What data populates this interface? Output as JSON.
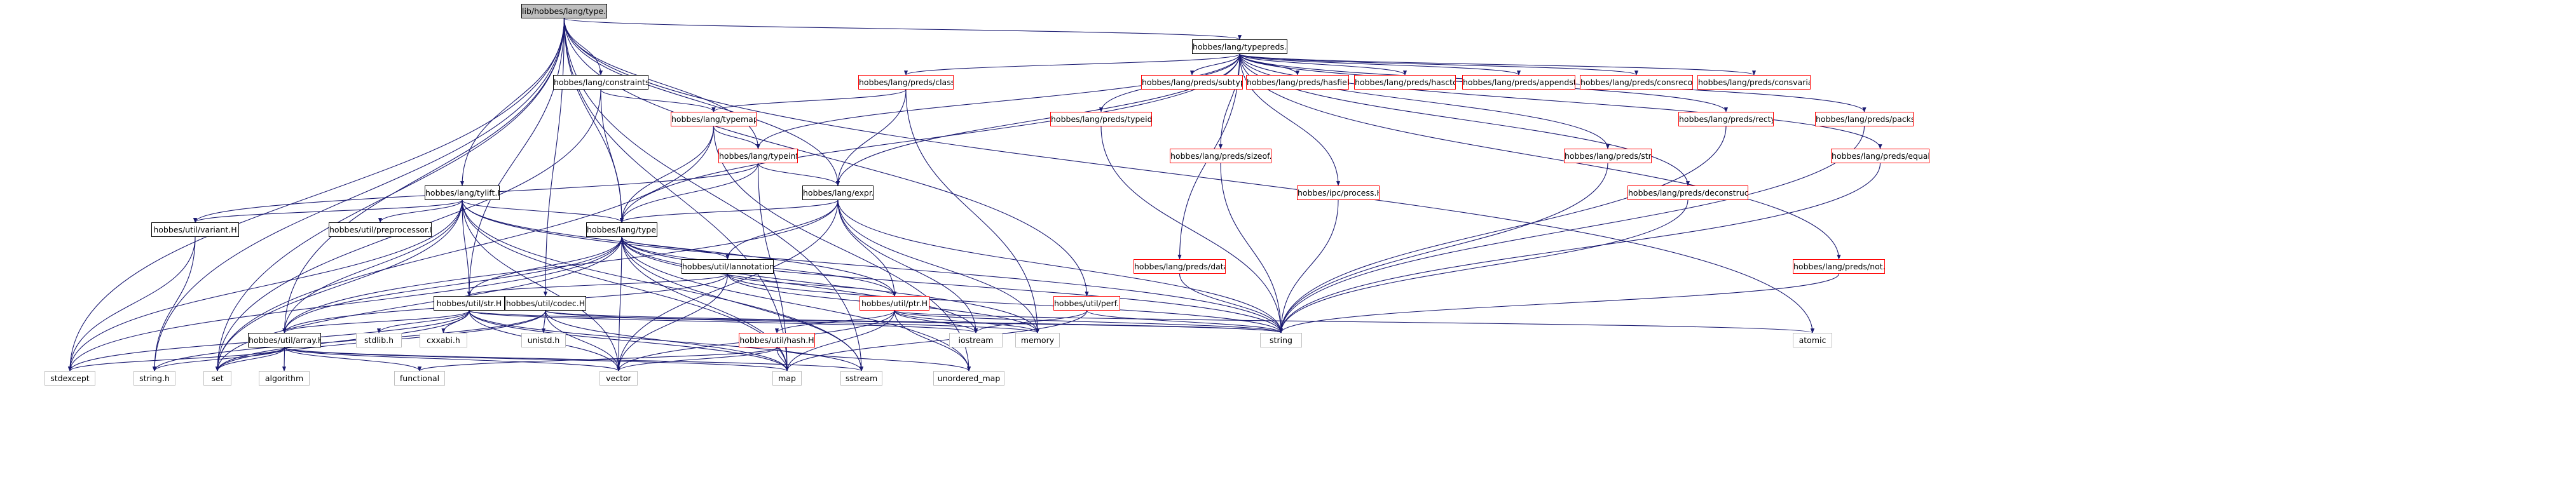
{
  "colors": {
    "edge": "#191970",
    "missing_border": "#ff0000",
    "plain_border": "#bfbfbf",
    "root_fill": "#bfbfbf"
  },
  "nodes": [
    {
      "id": "root",
      "label": "lib/hobbes/lang/type.C",
      "kind": "root"
    },
    {
      "id": "typepreds",
      "label": "hobbes/lang/typepreds.H",
      "kind": "local"
    },
    {
      "id": "constraints",
      "label": "hobbes/lang/constraints.H",
      "kind": "local"
    },
    {
      "id": "class",
      "label": "hobbes/lang/preds/class.H",
      "kind": "missing"
    },
    {
      "id": "subtype",
      "label": "hobbes/lang/preds/subtype.H",
      "kind": "missing"
    },
    {
      "id": "hasfield",
      "label": "hobbes/lang/preds/hasfield.H",
      "kind": "missing"
    },
    {
      "id": "hasctor",
      "label": "hobbes/lang/preds/hasctor.H",
      "kind": "missing"
    },
    {
      "id": "appendsto",
      "label": "hobbes/lang/preds/appendsto.H",
      "kind": "missing"
    },
    {
      "id": "consrecord",
      "label": "hobbes/lang/preds/consrecord.H",
      "kind": "missing"
    },
    {
      "id": "consvariant",
      "label": "hobbes/lang/preds/consvariant.H",
      "kind": "missing"
    },
    {
      "id": "typemap",
      "label": "hobbes/lang/typemap.H",
      "kind": "missing"
    },
    {
      "id": "typeddep",
      "label": "hobbes/lang/preds/typeid.H",
      "kind": "missing"
    },
    {
      "id": "recty",
      "label": "hobbes/lang/preds/recty.H",
      "kind": "missing"
    },
    {
      "id": "packsto",
      "label": "hobbes/lang/preds/packsto.H",
      "kind": "missing"
    },
    {
      "id": "typeinf",
      "label": "hobbes/lang/typeinf.H",
      "kind": "missing"
    },
    {
      "id": "sizeof",
      "label": "hobbes/lang/preds/sizeof.H",
      "kind": "missing"
    },
    {
      "id": "predstr",
      "label": "hobbes/lang/preds/str.H",
      "kind": "missing"
    },
    {
      "id": "predsequal",
      "label": "hobbes/lang/preds/equal.H",
      "kind": "missing"
    },
    {
      "id": "tylift",
      "label": "hobbes/lang/tylift.H",
      "kind": "local"
    },
    {
      "id": "expr",
      "label": "hobbes/lang/expr.H",
      "kind": "local"
    },
    {
      "id": "process",
      "label": "hobbes/ipc/process.H",
      "kind": "missing"
    },
    {
      "id": "deconstruct",
      "label": "hobbes/lang/preds/deconstruct.H",
      "kind": "missing"
    },
    {
      "id": "variant",
      "label": "hobbes/util/variant.H",
      "kind": "local"
    },
    {
      "id": "preprocessor",
      "label": "hobbes/util/preprocessor.H",
      "kind": "local"
    },
    {
      "id": "typeH",
      "label": "hobbes/lang/type.H",
      "kind": "local"
    },
    {
      "id": "lannotation",
      "label": "hobbes/util/lannotation.H",
      "kind": "local"
    },
    {
      "id": "predsdata",
      "label": "hobbes/lang/preds/data.H",
      "kind": "missing"
    },
    {
      "id": "predsnot",
      "label": "hobbes/lang/preds/not.H",
      "kind": "missing"
    },
    {
      "id": "utilstr",
      "label": "hobbes/util/str.H",
      "kind": "local"
    },
    {
      "id": "codec",
      "label": "hobbes/util/codec.H",
      "kind": "local"
    },
    {
      "id": "ptr",
      "label": "hobbes/util/ptr.H",
      "kind": "missing"
    },
    {
      "id": "perf",
      "label": "hobbes/util/perf.H",
      "kind": "missing"
    },
    {
      "id": "array",
      "label": "hobbes/util/array.H",
      "kind": "local"
    },
    {
      "id": "hash",
      "label": "hobbes/util/hash.H",
      "kind": "missing"
    },
    {
      "id": "stdlib",
      "label": "stdlib.h",
      "kind": "plain"
    },
    {
      "id": "cxxabi",
      "label": "cxxabi.h",
      "kind": "plain"
    },
    {
      "id": "unistd",
      "label": "unistd.h",
      "kind": "plain"
    },
    {
      "id": "iostream",
      "label": "iostream",
      "kind": "plain"
    },
    {
      "id": "memory",
      "label": "memory",
      "kind": "plain"
    },
    {
      "id": "string",
      "label": "string",
      "kind": "plain"
    },
    {
      "id": "atomic",
      "label": "atomic",
      "kind": "plain"
    },
    {
      "id": "stdexcept",
      "label": "stdexcept",
      "kind": "plain"
    },
    {
      "id": "stringh",
      "label": "string.h",
      "kind": "plain"
    },
    {
      "id": "set",
      "label": "set",
      "kind": "plain"
    },
    {
      "id": "algorithm",
      "label": "algorithm",
      "kind": "plain"
    },
    {
      "id": "functional",
      "label": "functional",
      "kind": "plain"
    },
    {
      "id": "vector",
      "label": "vector",
      "kind": "plain"
    },
    {
      "id": "map",
      "label": "map",
      "kind": "plain"
    },
    {
      "id": "sstream",
      "label": "sstream",
      "kind": "plain"
    },
    {
      "id": "unordered_map",
      "label": "unordered_map",
      "kind": "plain"
    }
  ],
  "edges": [
    [
      "root",
      "typepreds"
    ],
    [
      "root",
      "constraints"
    ],
    [
      "root",
      "tylift"
    ],
    [
      "root",
      "typeH"
    ],
    [
      "root",
      "expr"
    ],
    [
      "root",
      "typeinf"
    ],
    [
      "root",
      "utilstr"
    ],
    [
      "root",
      "codec"
    ],
    [
      "root",
      "array"
    ],
    [
      "root",
      "perf"
    ],
    [
      "root",
      "stdexcept"
    ],
    [
      "root",
      "stringh"
    ],
    [
      "root",
      "set"
    ],
    [
      "root",
      "atomic"
    ],
    [
      "root",
      "sstream"
    ],
    [
      "root",
      "map"
    ],
    [
      "typepreds",
      "class"
    ],
    [
      "typepreds",
      "subtype"
    ],
    [
      "typepreds",
      "hasfield"
    ],
    [
      "typepreds",
      "hasctor"
    ],
    [
      "typepreds",
      "appendsto"
    ],
    [
      "typepreds",
      "consrecord"
    ],
    [
      "typepreds",
      "consvariant"
    ],
    [
      "typepreds",
      "typeddep"
    ],
    [
      "typepreds",
      "recty"
    ],
    [
      "typepreds",
      "packsto"
    ],
    [
      "typepreds",
      "typeinf"
    ],
    [
      "typepreds",
      "sizeof"
    ],
    [
      "typepreds",
      "predstr"
    ],
    [
      "typepreds",
      "predsequal"
    ],
    [
      "typepreds",
      "process"
    ],
    [
      "typepreds",
      "deconstruct"
    ],
    [
      "typepreds",
      "predsdata"
    ],
    [
      "typepreds",
      "predsnot"
    ],
    [
      "typepreds",
      "expr"
    ],
    [
      "typepreds",
      "typeH"
    ],
    [
      "constraints",
      "typemap"
    ],
    [
      "constraints",
      "typeH"
    ],
    [
      "constraints",
      "set"
    ],
    [
      "class",
      "typemap"
    ],
    [
      "class",
      "expr"
    ],
    [
      "class",
      "memory"
    ],
    [
      "typemap",
      "typeinf"
    ],
    [
      "typemap",
      "typeH"
    ],
    [
      "typemap",
      "unordered_map"
    ],
    [
      "typemap",
      "set"
    ],
    [
      "typeinf",
      "expr"
    ],
    [
      "typeinf",
      "typeH"
    ],
    [
      "typeinf",
      "variant"
    ],
    [
      "typeinf",
      "map"
    ],
    [
      "typeddep",
      "string"
    ],
    [
      "recty",
      "string"
    ],
    [
      "packsto",
      "string"
    ],
    [
      "sizeof",
      "string"
    ],
    [
      "predstr",
      "string"
    ],
    [
      "predsequal",
      "string"
    ],
    [
      "process",
      "string"
    ],
    [
      "deconstruct",
      "string"
    ],
    [
      "predsdata",
      "string"
    ],
    [
      "predsnot",
      "string"
    ],
    [
      "tylift",
      "typeH"
    ],
    [
      "tylift",
      "variant"
    ],
    [
      "tylift",
      "preprocessor"
    ],
    [
      "tylift",
      "utilstr"
    ],
    [
      "tylift",
      "array"
    ],
    [
      "tylift",
      "ptr"
    ],
    [
      "tylift",
      "stdexcept"
    ],
    [
      "tylift",
      "set"
    ],
    [
      "tylift",
      "vector"
    ],
    [
      "tylift",
      "map"
    ],
    [
      "tylift",
      "string"
    ],
    [
      "tylift",
      "sstream"
    ],
    [
      "expr",
      "typeH"
    ],
    [
      "expr",
      "lannotation"
    ],
    [
      "expr",
      "ptr"
    ],
    [
      "expr",
      "array"
    ],
    [
      "expr",
      "iostream"
    ],
    [
      "expr",
      "memory"
    ],
    [
      "expr",
      "string"
    ],
    [
      "expr",
      "vector"
    ],
    [
      "variant",
      "stringh"
    ],
    [
      "variant",
      "stdexcept"
    ],
    [
      "typeH",
      "lannotation"
    ],
    [
      "typeH",
      "utilstr"
    ],
    [
      "typeH",
      "ptr"
    ],
    [
      "typeH",
      "array"
    ],
    [
      "typeH",
      "stdexcept"
    ],
    [
      "typeH",
      "set"
    ],
    [
      "typeH",
      "vector"
    ],
    [
      "typeH",
      "map"
    ],
    [
      "typeH",
      "string"
    ],
    [
      "typeH",
      "memory"
    ],
    [
      "typeH",
      "iostream"
    ],
    [
      "typeH",
      "sstream"
    ],
    [
      "typeH",
      "unordered_map"
    ],
    [
      "lannotation",
      "utilstr"
    ],
    [
      "lannotation",
      "array"
    ],
    [
      "lannotation",
      "ptr"
    ],
    [
      "lannotation",
      "string"
    ],
    [
      "lannotation",
      "vector"
    ],
    [
      "lannotation",
      "memory"
    ],
    [
      "utilstr",
      "array"
    ],
    [
      "utilstr",
      "stdlib"
    ],
    [
      "utilstr",
      "cxxabi"
    ],
    [
      "utilstr",
      "iostream"
    ],
    [
      "utilstr",
      "string"
    ],
    [
      "utilstr",
      "vector"
    ],
    [
      "utilstr",
      "set"
    ],
    [
      "utilstr",
      "map"
    ],
    [
      "utilstr",
      "sstream"
    ],
    [
      "utilstr",
      "stdexcept"
    ],
    [
      "codec",
      "unistd"
    ],
    [
      "codec",
      "stringh"
    ],
    [
      "codec",
      "vector"
    ],
    [
      "codec",
      "map"
    ],
    [
      "codec",
      "set"
    ],
    [
      "codec",
      "string"
    ],
    [
      "codec",
      "memory"
    ],
    [
      "ptr",
      "hash"
    ],
    [
      "ptr",
      "iostream"
    ],
    [
      "ptr",
      "memory"
    ],
    [
      "ptr",
      "string"
    ],
    [
      "ptr",
      "vector"
    ],
    [
      "ptr",
      "map"
    ],
    [
      "ptr",
      "unordered_map"
    ],
    [
      "ptr",
      "atomic"
    ],
    [
      "perf",
      "string"
    ],
    [
      "perf",
      "map"
    ],
    [
      "perf",
      "iostream"
    ],
    [
      "array",
      "stringh"
    ],
    [
      "array",
      "set"
    ],
    [
      "array",
      "algorithm"
    ],
    [
      "array",
      "functional"
    ],
    [
      "array",
      "vector"
    ],
    [
      "array",
      "map"
    ],
    [
      "array",
      "stdexcept"
    ],
    [
      "array",
      "sstream"
    ],
    [
      "hash",
      "functional"
    ],
    [
      "hash",
      "vector"
    ],
    [
      "hash",
      "map"
    ],
    [
      "hash",
      "unordered_map"
    ]
  ]
}
